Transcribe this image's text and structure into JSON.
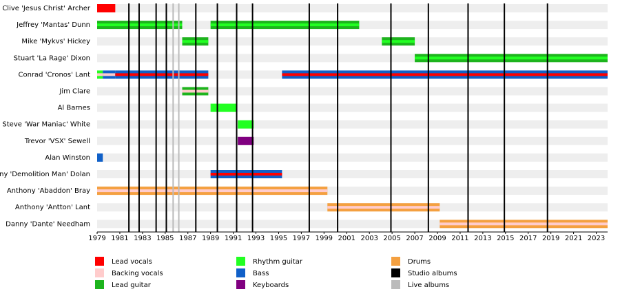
{
  "chart_data": {
    "type": "timeline",
    "xlim": [
      1979,
      2024
    ],
    "xticks": [
      1979,
      1981,
      1983,
      1985,
      1987,
      1989,
      1991,
      1993,
      1995,
      1997,
      1999,
      2001,
      2003,
      2005,
      2007,
      2009,
      2011,
      2013,
      2015,
      2017,
      2019,
      2021,
      2023
    ],
    "roles": [
      {
        "name": "Lead vocals",
        "color": "#ff0000"
      },
      {
        "name": "Backing vocals",
        "color": "#ffcccc"
      },
      {
        "name": "Lead guitar",
        "color": "#1db41d"
      },
      {
        "name": "Rhythm guitar",
        "color": "#22ff22"
      },
      {
        "name": "Bass",
        "color": "#1060c8"
      },
      {
        "name": "Keyboards",
        "color": "#800080"
      },
      {
        "name": "Drums",
        "color": "#f4a040"
      }
    ],
    "studio_albums": {
      "name": "Studio albums",
      "color": "#000000",
      "x": [
        1981.8,
        1982.7,
        1984.2,
        1985.1,
        1987.7,
        1989.6,
        1991.3,
        1992.7,
        1997.7,
        2000.2,
        2004.9,
        2008.2,
        2011.7,
        2014.9,
        2018.7
      ]
    },
    "live_albums": {
      "name": "Live albums",
      "color": "#bbbbbb",
      "x": [
        1985.7,
        1986.2
      ]
    },
    "members": [
      {
        "name": "Clive 'Jesus Christ' Archer",
        "segments": [
          {
            "start": 1979,
            "end": 1980.6,
            "role": "Lead vocals"
          }
        ]
      },
      {
        "name": "Jeffrey 'Mantas' Dunn",
        "segments": [
          {
            "start": 1979,
            "end": 1986.5,
            "role": "Lead guitar",
            "stripe": "Rhythm guitar"
          },
          {
            "start": 1989,
            "end": 2002.1,
            "role": "Lead guitar",
            "stripe": "Rhythm guitar"
          }
        ]
      },
      {
        "name": "Mike 'Mykvs' Hickey",
        "segments": [
          {
            "start": 1986.5,
            "end": 1988.8,
            "role": "Lead guitar",
            "stripe": "Rhythm guitar"
          },
          {
            "start": 2004.1,
            "end": 2007.0,
            "role": "Lead guitar",
            "stripe": "Rhythm guitar"
          }
        ]
      },
      {
        "name": "Stuart 'La Rage' Dixon",
        "segments": [
          {
            "start": 2007.0,
            "end": 2024,
            "role": "Lead guitar",
            "stripe": "Rhythm guitar"
          }
        ]
      },
      {
        "name": "Conrad 'Cronos' Lant",
        "segments": [
          {
            "start": 1979,
            "end": 1979.5,
            "role": "Rhythm guitar",
            "stripe": "Backing vocals"
          },
          {
            "start": 1979.5,
            "end": 1980.6,
            "role": "Bass",
            "stripe": "Backing vocals"
          },
          {
            "start": 1980.6,
            "end": 1988.8,
            "role": "Bass",
            "stripe": "Lead vocals"
          },
          {
            "start": 1995.3,
            "end": 2024,
            "role": "Bass",
            "stripe": "Lead vocals"
          }
        ]
      },
      {
        "name": "Jim Clare",
        "segments": [
          {
            "start": 1986.5,
            "end": 1988.8,
            "role": "Lead guitar",
            "stripe": "Backing vocals"
          }
        ]
      },
      {
        "name": "Al Barnes",
        "segments": [
          {
            "start": 1989,
            "end": 1991.3,
            "role": "Rhythm guitar"
          }
        ]
      },
      {
        "name": "Steve 'War Maniac' White",
        "segments": [
          {
            "start": 1991.4,
            "end": 1992.8,
            "role": "Rhythm guitar"
          }
        ]
      },
      {
        "name": "Trevor 'VSX' Sewell",
        "segments": [
          {
            "start": 1991.4,
            "end": 1992.8,
            "role": "Keyboards"
          }
        ]
      },
      {
        "name": "Alan Winston",
        "segments": [
          {
            "start": 1979,
            "end": 1979.5,
            "role": "Bass"
          }
        ]
      },
      {
        "name": "Tony 'Demolition Man' Dolan",
        "segments": [
          {
            "start": 1989,
            "end": 1995.3,
            "role": "Bass",
            "stripe": "Lead vocals"
          }
        ]
      },
      {
        "name": "Anthony 'Abaddon' Bray",
        "segments": [
          {
            "start": 1979,
            "end": 1999.3,
            "role": "Drums",
            "stripe": "Backing vocals"
          }
        ]
      },
      {
        "name": "Anthony 'Antton' Lant",
        "segments": [
          {
            "start": 1999.3,
            "end": 2009.2,
            "role": "Drums",
            "stripe": "Backing vocals"
          }
        ]
      },
      {
        "name": "Danny 'Dante' Needham",
        "segments": [
          {
            "start": 2009.2,
            "end": 2024,
            "role": "Drums",
            "stripe": "Backing vocals"
          }
        ]
      }
    ]
  }
}
